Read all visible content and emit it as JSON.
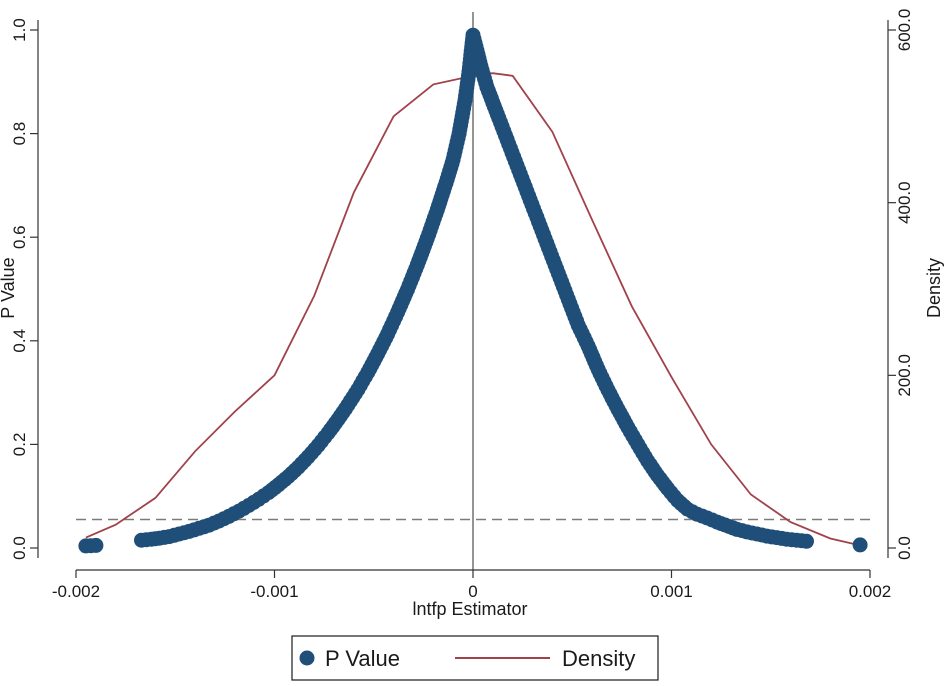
{
  "chart_data": {
    "type": "scatter",
    "xlabel": "lntfp Estimator",
    "ylabel": "P Value",
    "ylabel_right": "Density",
    "xlim": [
      -0.002,
      0.002
    ],
    "ylim_left": [
      0,
      1
    ],
    "ylim_right": [
      0,
      600
    ],
    "x_ticks": [
      {
        "value": -0.002,
        "label": "-0.002"
      },
      {
        "value": -0.001,
        "label": "-0.001"
      },
      {
        "value": 0,
        "label": "0"
      },
      {
        "value": 0.001,
        "label": "0.001"
      },
      {
        "value": 0.002,
        "label": "0.002"
      }
    ],
    "y_ticks_left": [
      {
        "value": 0,
        "label": "0.0"
      },
      {
        "value": 0.2,
        "label": "0.2"
      },
      {
        "value": 0.4,
        "label": "0.4"
      },
      {
        "value": 0.6,
        "label": "0.6"
      },
      {
        "value": 0.8,
        "label": "0.8"
      },
      {
        "value": 1.0,
        "label": "1.0"
      }
    ],
    "y_ticks_right": [
      {
        "value": 0,
        "label": "0.0"
      },
      {
        "value": 200,
        "label": "200.0"
      },
      {
        "value": 400,
        "label": "400.0"
      },
      {
        "value": 600,
        "label": "600.0"
      }
    ],
    "reference_lines": {
      "vertical_x": 0,
      "horizontal_y": 0.055
    },
    "series": [
      {
        "name": "P Value",
        "kind": "scatter",
        "color": "#1f4e79",
        "points": [
          {
            "x": -0.00195,
            "y": 0.004
          },
          {
            "x": -0.0019,
            "y": 0.005
          },
          {
            "x": -0.00167,
            "y": 0.015
          },
          {
            "x": -0.00162,
            "y": 0.017
          },
          {
            "x": -0.00158,
            "y": 0.019
          },
          {
            "x": -0.00153,
            "y": 0.022
          },
          {
            "x": -0.00148,
            "y": 0.027
          },
          {
            "x": -0.00143,
            "y": 0.032
          },
          {
            "x": -0.00138,
            "y": 0.038
          },
          {
            "x": -0.00133,
            "y": 0.044
          },
          {
            "x": -0.00128,
            "y": 0.052
          },
          {
            "x": -0.00123,
            "y": 0.061
          },
          {
            "x": -0.00118,
            "y": 0.071
          },
          {
            "x": -0.00113,
            "y": 0.082
          },
          {
            "x": -0.00108,
            "y": 0.094
          },
          {
            "x": -0.00103,
            "y": 0.107
          },
          {
            "x": -0.00098,
            "y": 0.122
          },
          {
            "x": -0.00093,
            "y": 0.138
          },
          {
            "x": -0.00088,
            "y": 0.156
          },
          {
            "x": -0.00083,
            "y": 0.176
          },
          {
            "x": -0.00078,
            "y": 0.198
          },
          {
            "x": -0.00073,
            "y": 0.222
          },
          {
            "x": -0.00068,
            "y": 0.248
          },
          {
            "x": -0.00063,
            "y": 0.276
          },
          {
            "x": -0.00058,
            "y": 0.306
          },
          {
            "x": -0.00053,
            "y": 0.339
          },
          {
            "x": -0.00048,
            "y": 0.375
          },
          {
            "x": -0.00043,
            "y": 0.413
          },
          {
            "x": -0.00038,
            "y": 0.455
          },
          {
            "x": -0.00033,
            "y": 0.499
          },
          {
            "x": -0.00028,
            "y": 0.547
          },
          {
            "x": -0.00023,
            "y": 0.598
          },
          {
            "x": -0.00018,
            "y": 0.653
          },
          {
            "x": -0.00013,
            "y": 0.712
          },
          {
            "x": -0.0001,
            "y": 0.75
          },
          {
            "x": -7e-05,
            "y": 0.8
          },
          {
            "x": -4e-05,
            "y": 0.865
          },
          {
            "x": -2e-05,
            "y": 0.92
          },
          {
            "x": 0.0,
            "y": 0.99
          },
          {
            "x": 2e-05,
            "y": 0.96
          },
          {
            "x": 4e-05,
            "y": 0.93
          },
          {
            "x": 7e-05,
            "y": 0.89
          },
          {
            "x": 0.0001,
            "y": 0.86
          },
          {
            "x": 0.00013,
            "y": 0.83
          },
          {
            "x": 0.00018,
            "y": 0.78
          },
          {
            "x": 0.00023,
            "y": 0.73
          },
          {
            "x": 0.00028,
            "y": 0.68
          },
          {
            "x": 0.00033,
            "y": 0.63
          },
          {
            "x": 0.00038,
            "y": 0.58
          },
          {
            "x": 0.00043,
            "y": 0.53
          },
          {
            "x": 0.00048,
            "y": 0.48
          },
          {
            "x": 0.00053,
            "y": 0.43
          },
          {
            "x": 0.00058,
            "y": 0.39
          },
          {
            "x": 0.00063,
            "y": 0.345
          },
          {
            "x": 0.00068,
            "y": 0.305
          },
          {
            "x": 0.00073,
            "y": 0.268
          },
          {
            "x": 0.00078,
            "y": 0.233
          },
          {
            "x": 0.00083,
            "y": 0.2
          },
          {
            "x": 0.00088,
            "y": 0.168
          },
          {
            "x": 0.00093,
            "y": 0.14
          },
          {
            "x": 0.00098,
            "y": 0.115
          },
          {
            "x": 0.00103,
            "y": 0.092
          },
          {
            "x": 0.00108,
            "y": 0.075
          },
          {
            "x": 0.00113,
            "y": 0.065
          },
          {
            "x": 0.00118,
            "y": 0.058
          },
          {
            "x": 0.00123,
            "y": 0.05
          },
          {
            "x": 0.00133,
            "y": 0.036
          },
          {
            "x": 0.00138,
            "y": 0.031
          },
          {
            "x": 0.00143,
            "y": 0.027
          },
          {
            "x": 0.00148,
            "y": 0.023
          },
          {
            "x": 0.00153,
            "y": 0.02
          },
          {
            "x": 0.00158,
            "y": 0.017
          },
          {
            "x": 0.00163,
            "y": 0.015
          },
          {
            "x": 0.00168,
            "y": 0.013
          },
          {
            "x": 0.00195,
            "y": 0.006
          }
        ]
      },
      {
        "name": "Density",
        "kind": "line",
        "axis": "right",
        "color": "#a0424a",
        "points": [
          {
            "x": -0.00195,
            "y": 12
          },
          {
            "x": -0.0018,
            "y": 27
          },
          {
            "x": -0.0016,
            "y": 58
          },
          {
            "x": -0.0014,
            "y": 112
          },
          {
            "x": -0.0012,
            "y": 158
          },
          {
            "x": -0.001,
            "y": 200
          },
          {
            "x": -0.0008,
            "y": 292
          },
          {
            "x": -0.0006,
            "y": 412
          },
          {
            "x": -0.0004,
            "y": 500
          },
          {
            "x": -0.0002,
            "y": 537
          },
          {
            "x": 0.0,
            "y": 547
          },
          {
            "x": 0.0001,
            "y": 550
          },
          {
            "x": 0.0002,
            "y": 547
          },
          {
            "x": 0.0004,
            "y": 482
          },
          {
            "x": 0.0006,
            "y": 380
          },
          {
            "x": 0.0008,
            "y": 280
          },
          {
            "x": 0.001,
            "y": 198
          },
          {
            "x": 0.0012,
            "y": 120
          },
          {
            "x": 0.0014,
            "y": 62
          },
          {
            "x": 0.0016,
            "y": 30
          },
          {
            "x": 0.0018,
            "y": 11
          },
          {
            "x": 0.00195,
            "y": 3
          }
        ]
      }
    ]
  },
  "legend": {
    "items": [
      {
        "label": "P Value"
      },
      {
        "label": "Density"
      }
    ]
  }
}
